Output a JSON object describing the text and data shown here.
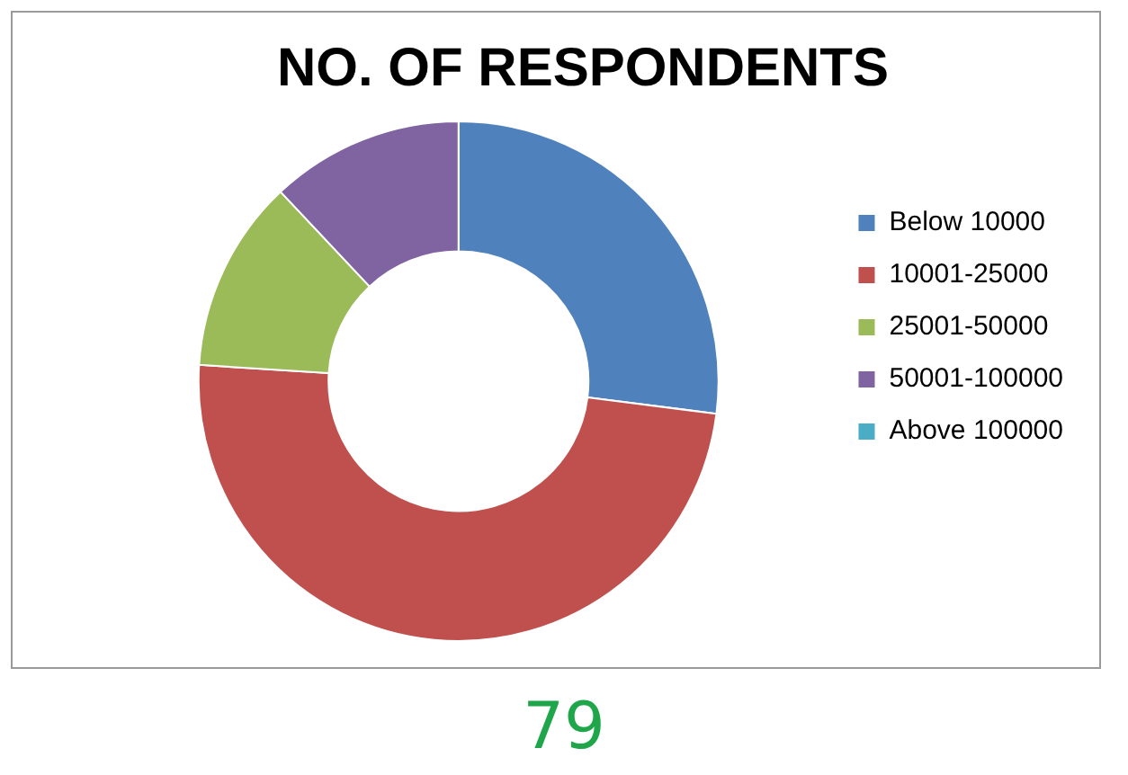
{
  "chart_data": {
    "type": "donut",
    "title": "NO. OF RESPONDENTS",
    "categories": [
      "Below 10000",
      "10001-25000",
      "25001-50000",
      "50001-100000",
      "Above 100000"
    ],
    "values": [
      27,
      49,
      12,
      12,
      0
    ],
    "colors": [
      "#4f81bd",
      "#c0504d",
      "#9bbb59",
      "#8064a2",
      "#4bacc6"
    ],
    "legend": "right",
    "annotations": [
      "79"
    ]
  }
}
